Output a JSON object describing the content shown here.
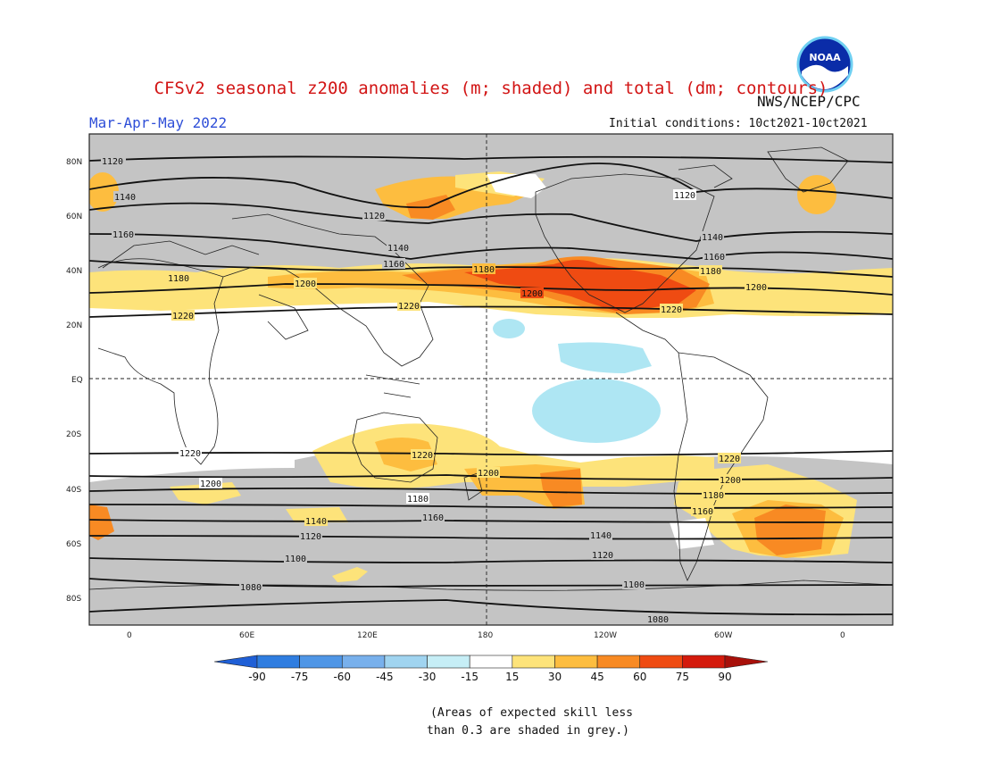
{
  "title": "CFSv2 seasonal z200 anomalies (m; shaded) and total (dm; contours)",
  "agency": "NWS/NCEP/CPC",
  "logo_text": "NOAA",
  "season": "Mar-Apr-May 2022",
  "initial_conditions": "Initial conditions: 10ct2021-10ct2021",
  "lat_ticks": [
    "80N",
    "60N",
    "40N",
    "20N",
    "EQ",
    "20S",
    "40S",
    "60S",
    "80S"
  ],
  "lon_ticks": [
    "0",
    "60E",
    "120E",
    "180",
    "120W",
    "60W",
    "0"
  ],
  "contours": [
    {
      "label": "1120",
      "value": 1120
    },
    {
      "label": "1140",
      "value": 1140
    },
    {
      "label": "1160",
      "value": 1160
    },
    {
      "label": "1180",
      "value": 1180
    },
    {
      "label": "1200",
      "value": 1200
    },
    {
      "label": "1220",
      "value": 1220
    },
    {
      "label": "1100",
      "value": 1100
    },
    {
      "label": "1080",
      "value": 1080
    }
  ],
  "colorbar": {
    "labels": [
      "-90",
      "-75",
      "-60",
      "-45",
      "-30",
      "-15",
      "15",
      "30",
      "45",
      "60",
      "75",
      "90"
    ],
    "colors": [
      "#1f5fd6",
      "#2f7de0",
      "#4f96e6",
      "#78b0ec",
      "#a0d4f0",
      "#c6eef6",
      "#ffffff",
      "#fde37a",
      "#fdbd3f",
      "#f88a23",
      "#ef4b12",
      "#d41a0c",
      "#a8100a"
    ]
  },
  "note_line1": "(Areas of expected skill less",
  "note_line2": "than 0.3 are shaded in grey.)",
  "colors": {
    "title": "#d21414",
    "season": "#2f4fd8",
    "skill_grey": "#c4c4c4"
  }
}
